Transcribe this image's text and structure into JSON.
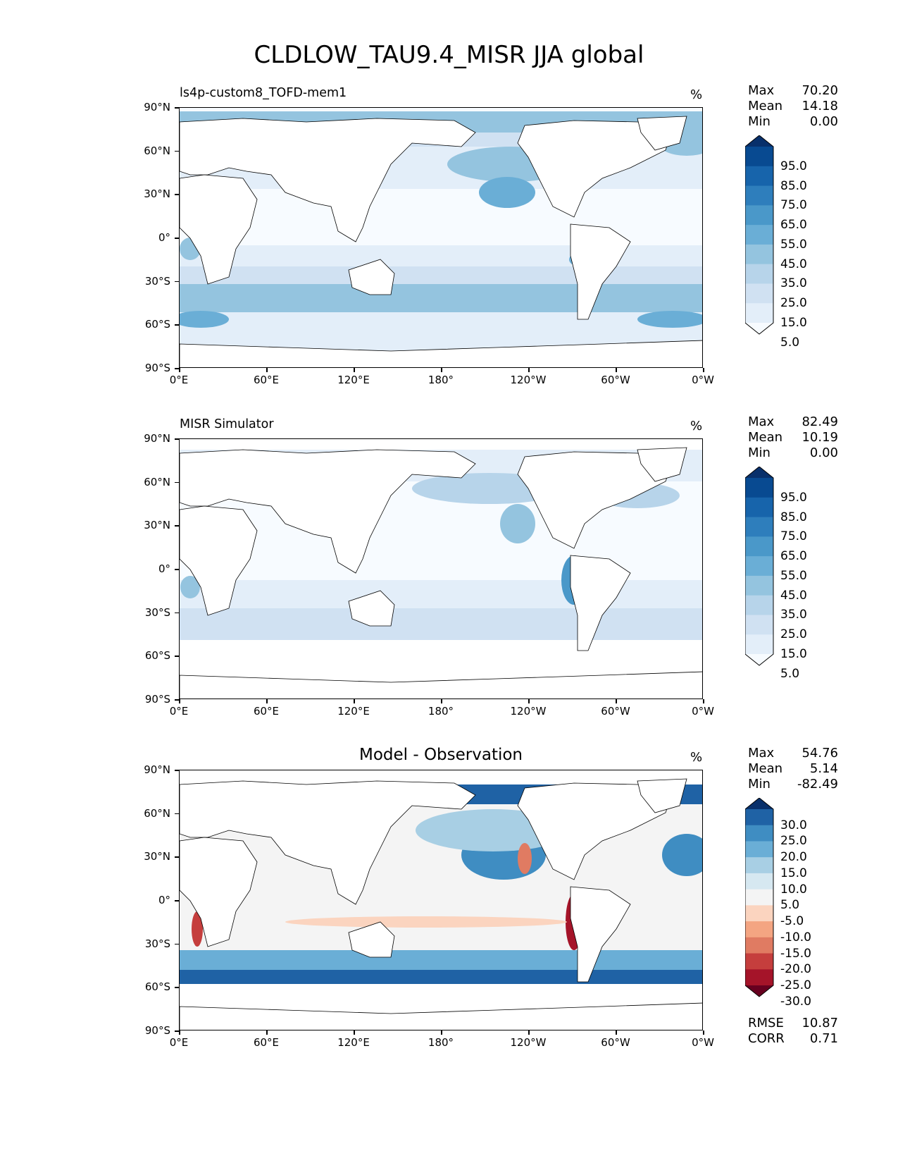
{
  "suptitle": "CLDLOW_TAU9.4_MISR JJA global",
  "lat_labels": [
    "90°N",
    "60°N",
    "30°N",
    "0°",
    "30°S",
    "60°S",
    "90°S"
  ],
  "lon_labels": [
    "0°E",
    "60°E",
    "120°E",
    "180°",
    "120°W",
    "60°W",
    "0°W"
  ],
  "panels": [
    {
      "title": "ls4p-custom8_TOFD-mem1",
      "unit": "%",
      "stats": {
        "max_label": "Max",
        "max": "70.20",
        "mean_label": "Mean",
        "mean": "14.18",
        "min_label": "Min",
        "min": "0.00"
      },
      "colorbar_labels": [
        "95.0",
        "85.0",
        "75.0",
        "65.0",
        "55.0",
        "45.0",
        "35.0",
        "25.0",
        "15.0",
        "5.0"
      ]
    },
    {
      "title": "MISR Simulator",
      "unit": "%",
      "stats": {
        "max_label": "Max",
        "max": "82.49",
        "mean_label": "Mean",
        "mean": "10.19",
        "min_label": "Min",
        "min": "0.00"
      },
      "colorbar_labels": [
        "95.0",
        "85.0",
        "75.0",
        "65.0",
        "55.0",
        "45.0",
        "35.0",
        "25.0",
        "15.0",
        "5.0"
      ]
    },
    {
      "title": "Model - Observation",
      "unit": "%",
      "stats": {
        "max_label": "Max",
        "max": "54.76",
        "mean_label": "Mean",
        "mean": "5.14",
        "min_label": "Min",
        "min": "-82.49"
      },
      "colorbar_labels": [
        "30.0",
        "25.0",
        "20.0",
        "15.0",
        "10.0",
        "5.0",
        "-5.0",
        "-10.0",
        "-15.0",
        "-20.0",
        "-25.0",
        "-30.0"
      ],
      "rmse_label": "RMSE",
      "rmse": "10.87",
      "corr_label": "CORR",
      "corr": "0.71"
    }
  ],
  "chart_data": [
    {
      "type": "heatmap",
      "title": "ls4p-custom8_TOFD-mem1",
      "projection": "PlateCarree, 0–360°E",
      "units": "%",
      "levels": [
        0,
        5,
        10,
        15,
        20,
        25,
        30,
        35,
        40,
        45,
        50,
        55,
        60,
        65,
        70,
        75,
        80,
        85,
        90,
        95,
        100
      ],
      "colormap": "Blues",
      "max": 70.2,
      "mean": 14.18,
      "min": 0.0
    },
    {
      "type": "heatmap",
      "title": "MISR Simulator",
      "projection": "PlateCarree, 0–360°E",
      "units": "%",
      "levels": [
        0,
        5,
        10,
        15,
        20,
        25,
        30,
        35,
        40,
        45,
        50,
        55,
        60,
        65,
        70,
        75,
        80,
        85,
        90,
        95,
        100
      ],
      "colormap": "Blues",
      "max": 82.49,
      "mean": 10.19,
      "min": 0.0
    },
    {
      "type": "heatmap",
      "title": "Model - Observation",
      "projection": "PlateCarree, 0–360°E",
      "units": "%",
      "levels": [
        -35,
        -30,
        -25,
        -20,
        -15,
        -10,
        -5,
        5,
        10,
        15,
        20,
        25,
        30,
        35
      ],
      "colormap": "RdBu (diverging)",
      "max": 54.76,
      "mean": 5.14,
      "min": -82.49,
      "rmse": 10.87,
      "corr": 0.71
    }
  ],
  "colors": {
    "blues": [
      "#f7fbff",
      "#e3eef9",
      "#d0e1f2",
      "#b7d4ea",
      "#94c4df",
      "#6aaed6",
      "#4a98c9",
      "#2e7ebc",
      "#1764ab",
      "#084a91",
      "#08306b"
    ],
    "diff": [
      "#67001f",
      "#a51429",
      "#c53e3d",
      "#e07b62",
      "#f4a582",
      "#fbd4bf",
      "#f4f4f4",
      "#d6e8f1",
      "#a8cfe4",
      "#6aaed6",
      "#3f8dc2",
      "#1f62a5",
      "#08306b"
    ]
  }
}
